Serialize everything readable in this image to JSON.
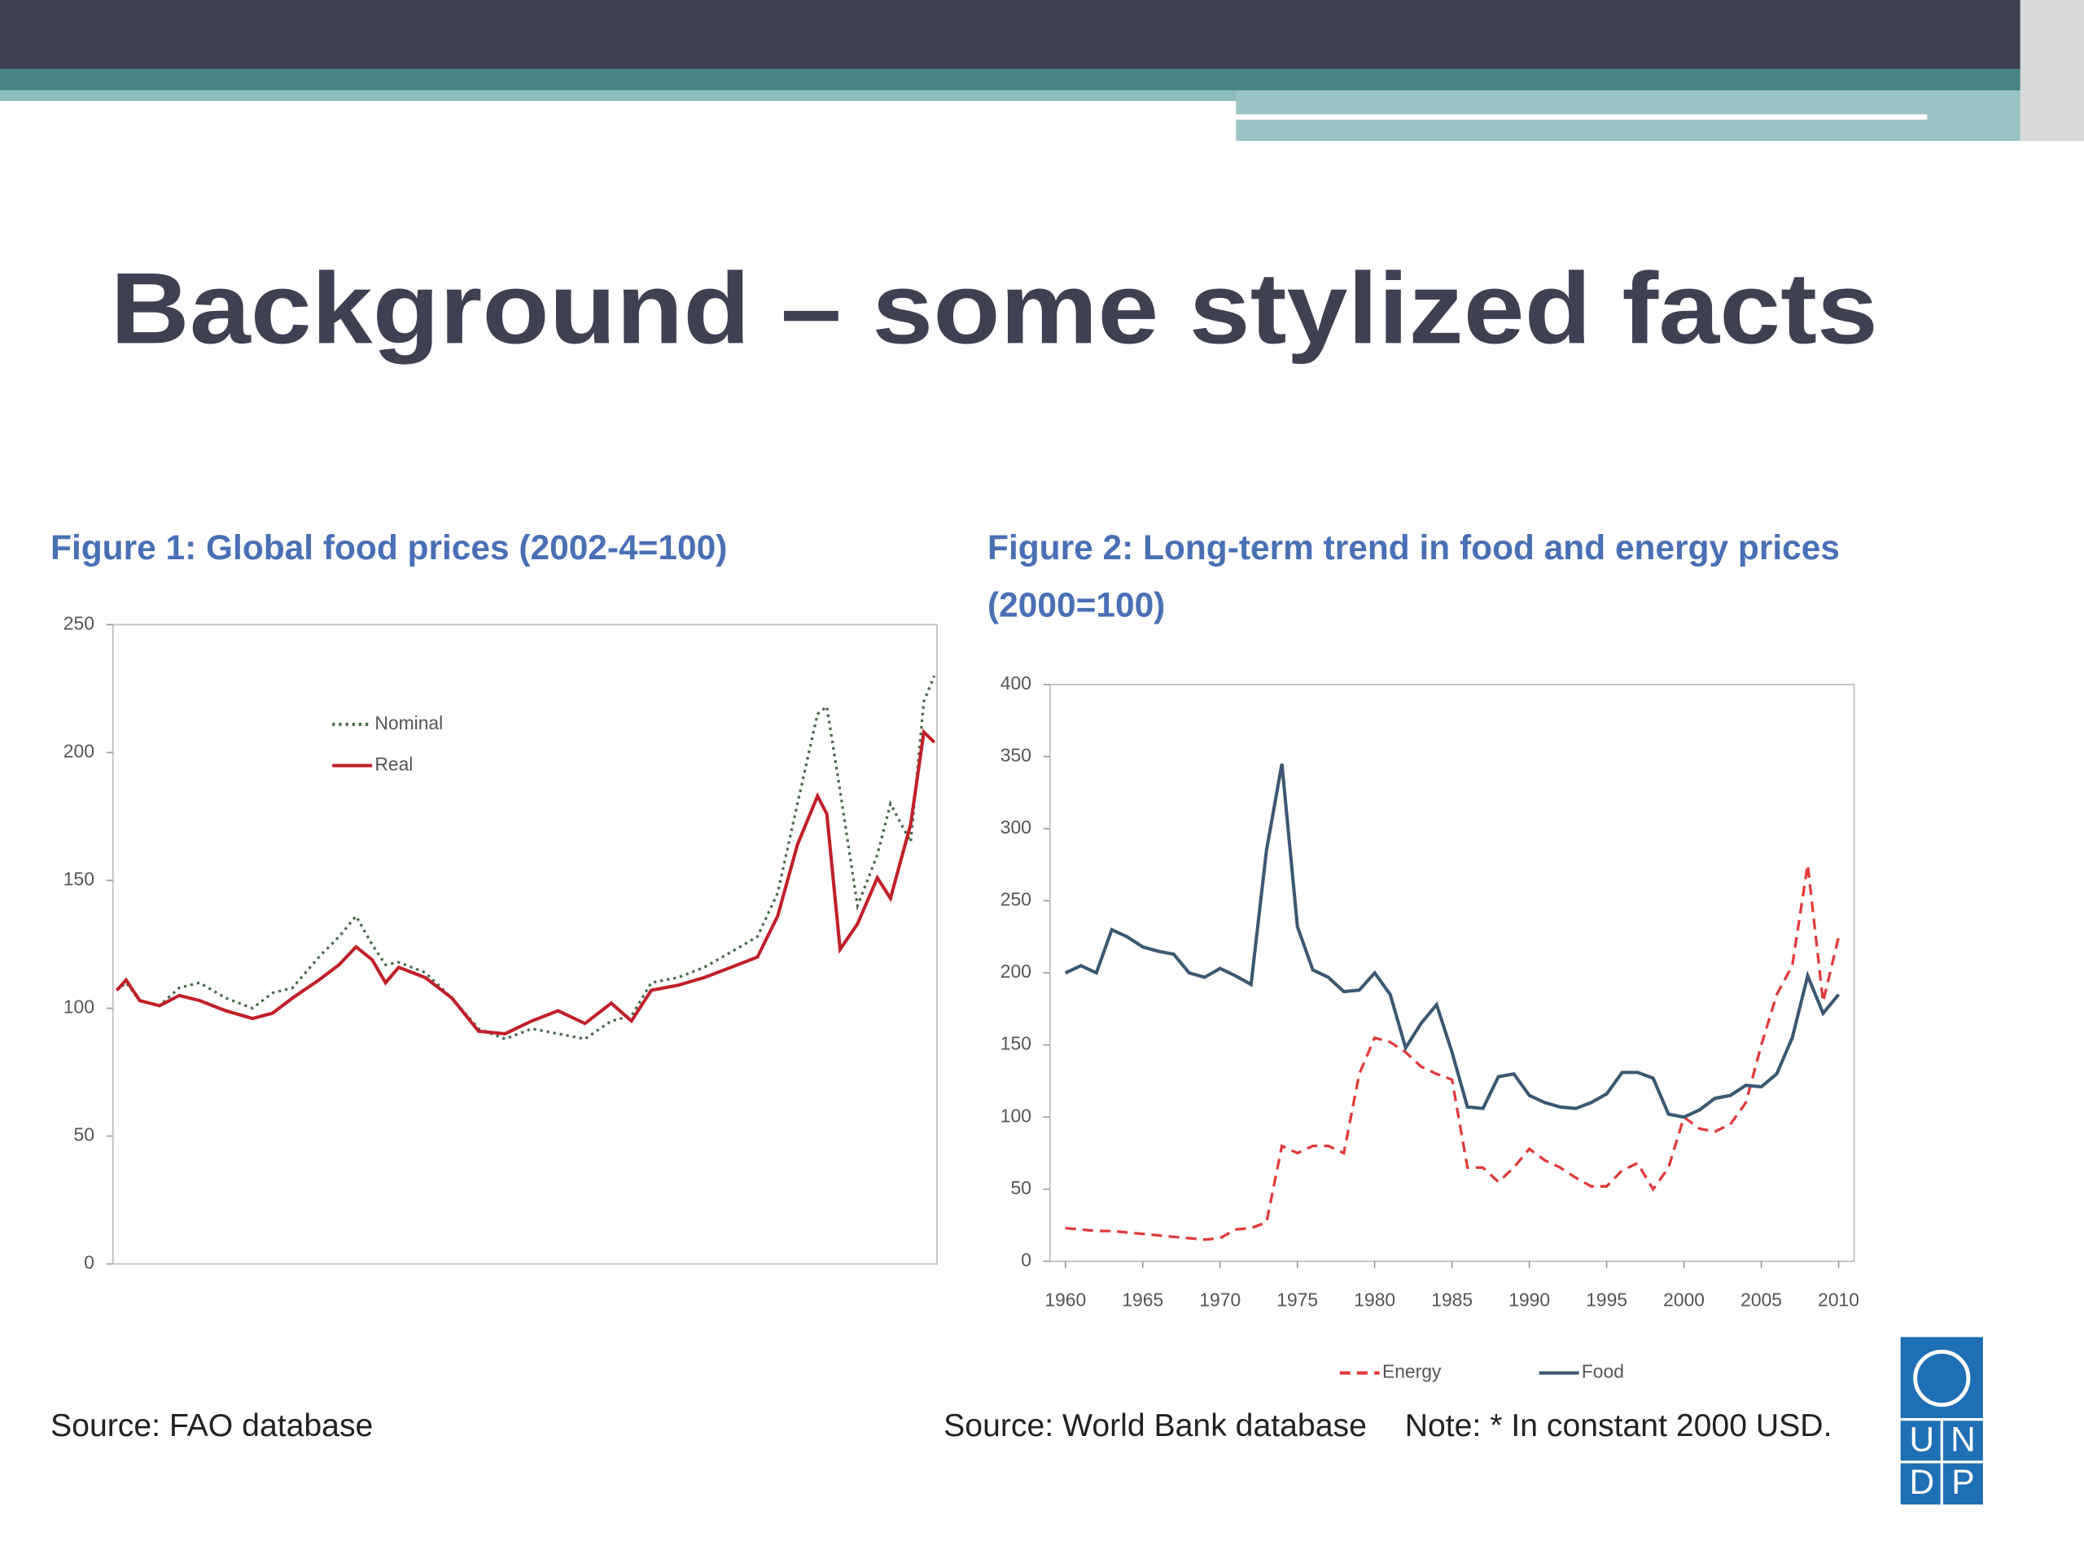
{
  "header": {
    "title": "Background – some stylized facts"
  },
  "chart_data": [
    {
      "type": "line",
      "title": [
        "Figure 1: Global food prices (2002-4=100)"
      ],
      "x": [
        1990.1,
        1990.34,
        1990.69,
        1991.2,
        1991.71,
        1992.23,
        1992.91,
        1993.6,
        1994.11,
        1994.63,
        1995.31,
        1995.83,
        1996.27,
        1996.68,
        1997.03,
        1997.37,
        1998.05,
        1998.74,
        1999.43,
        2000.11,
        2000.8,
        2001.48,
        2002.17,
        2002.85,
        2003.37,
        2003.88,
        2004.57,
        2005.25,
        2005.94,
        2006.62,
        2007.14,
        2007.65,
        2008.17,
        2008.41,
        2008.75,
        2009.2,
        2009.71,
        2010.05,
        2010.57,
        2010.91,
        2011.18
      ],
      "series": [
        {
          "name": "Nominal",
          "color": "#4b6a4b",
          "line_style": "dotted",
          "values": [
            107,
            110,
            103,
            101,
            108,
            110,
            104,
            100,
            106,
            108,
            120,
            128,
            136,
            125,
            117,
            118,
            114,
            104,
            92,
            88,
            92,
            90,
            88,
            95,
            97,
            110,
            112,
            116,
            122,
            128,
            145,
            180,
            215,
            218,
            185,
            140,
            160,
            180,
            165,
            220,
            230
          ]
        },
        {
          "name": "Real",
          "color": "#c0202a",
          "line_style": "solid",
          "values": [
            107,
            111,
            103,
            101,
            105,
            103,
            99,
            96,
            98,
            104,
            111,
            117,
            124,
            119,
            110,
            116,
            112,
            104,
            91,
            90,
            95,
            99,
            94,
            102,
            95,
            107,
            109,
            112,
            116,
            120,
            136,
            164,
            183,
            176,
            123,
            133,
            151,
            143,
            172,
            208,
            204
          ]
        }
      ],
      "xlim": [
        1990,
        2011.25
      ],
      "ylim": [
        0,
        250
      ],
      "yticks": [
        0,
        50,
        100,
        150,
        200,
        250
      ],
      "legend": "upper left",
      "source": "Source: FAO database"
    },
    {
      "type": "line",
      "title": [
        "Figure 2: Long-term trend in food and energy prices",
        "(2000=100)"
      ],
      "x": [
        1960,
        1961,
        1962,
        1963,
        1964,
        1965,
        1966,
        1967,
        1968,
        1969,
        1970,
        1971,
        1972,
        1973,
        1974,
        1975,
        1976,
        1977,
        1978,
        1979,
        1980,
        1981,
        1982,
        1983,
        1984,
        1985,
        1986,
        1987,
        1988,
        1989,
        1990,
        1991,
        1992,
        1993,
        1994,
        1995,
        1996,
        1997,
        1998,
        1999,
        2000,
        2001,
        2002,
        2003,
        2004,
        2005,
        2006,
        2007,
        2008,
        2009,
        2010
      ],
      "series": [
        {
          "name": "Energy",
          "color": "#e03a3a",
          "line_style": "dashed",
          "values": [
            23,
            22,
            21,
            21,
            20,
            19,
            18,
            17,
            16,
            15,
            16,
            22,
            23,
            27,
            80,
            75,
            80,
            80,
            75,
            130,
            155,
            152,
            145,
            135,
            130,
            126,
            65,
            65,
            55,
            65,
            78,
            70,
            65,
            58,
            52,
            52,
            63,
            68,
            50,
            65,
            100,
            92,
            90,
            95,
            110,
            150,
            185,
            205,
            275,
            180,
            225
          ]
        },
        {
          "name": "Food",
          "color": "#3c5872",
          "line_style": "solid",
          "values": [
            200,
            205,
            200,
            230,
            225,
            218,
            215,
            213,
            200,
            197,
            203,
            198,
            192,
            285,
            345,
            232,
            202,
            197,
            187,
            188,
            200,
            185,
            148,
            165,
            178,
            145,
            107,
            106,
            128,
            130,
            115,
            110,
            107,
            106,
            110,
            116,
            131,
            131,
            127,
            102,
            100,
            105,
            113,
            115,
            122,
            121,
            130,
            155,
            198,
            172,
            185
          ]
        }
      ],
      "xlim": [
        1959,
        2011
      ],
      "xticks": [
        1960,
        1965,
        1970,
        1975,
        1980,
        1985,
        1990,
        1995,
        2000,
        2005,
        2010
      ],
      "ylim": [
        0,
        400
      ],
      "yticks": [
        0,
        50,
        100,
        150,
        200,
        250,
        300,
        350,
        400
      ],
      "legend": "bottom",
      "source": "Source: World Bank database",
      "note": "Note: * In constant 2000 USD."
    }
  ],
  "logo": {
    "letters": [
      "U",
      "N",
      "D",
      "P"
    ]
  }
}
